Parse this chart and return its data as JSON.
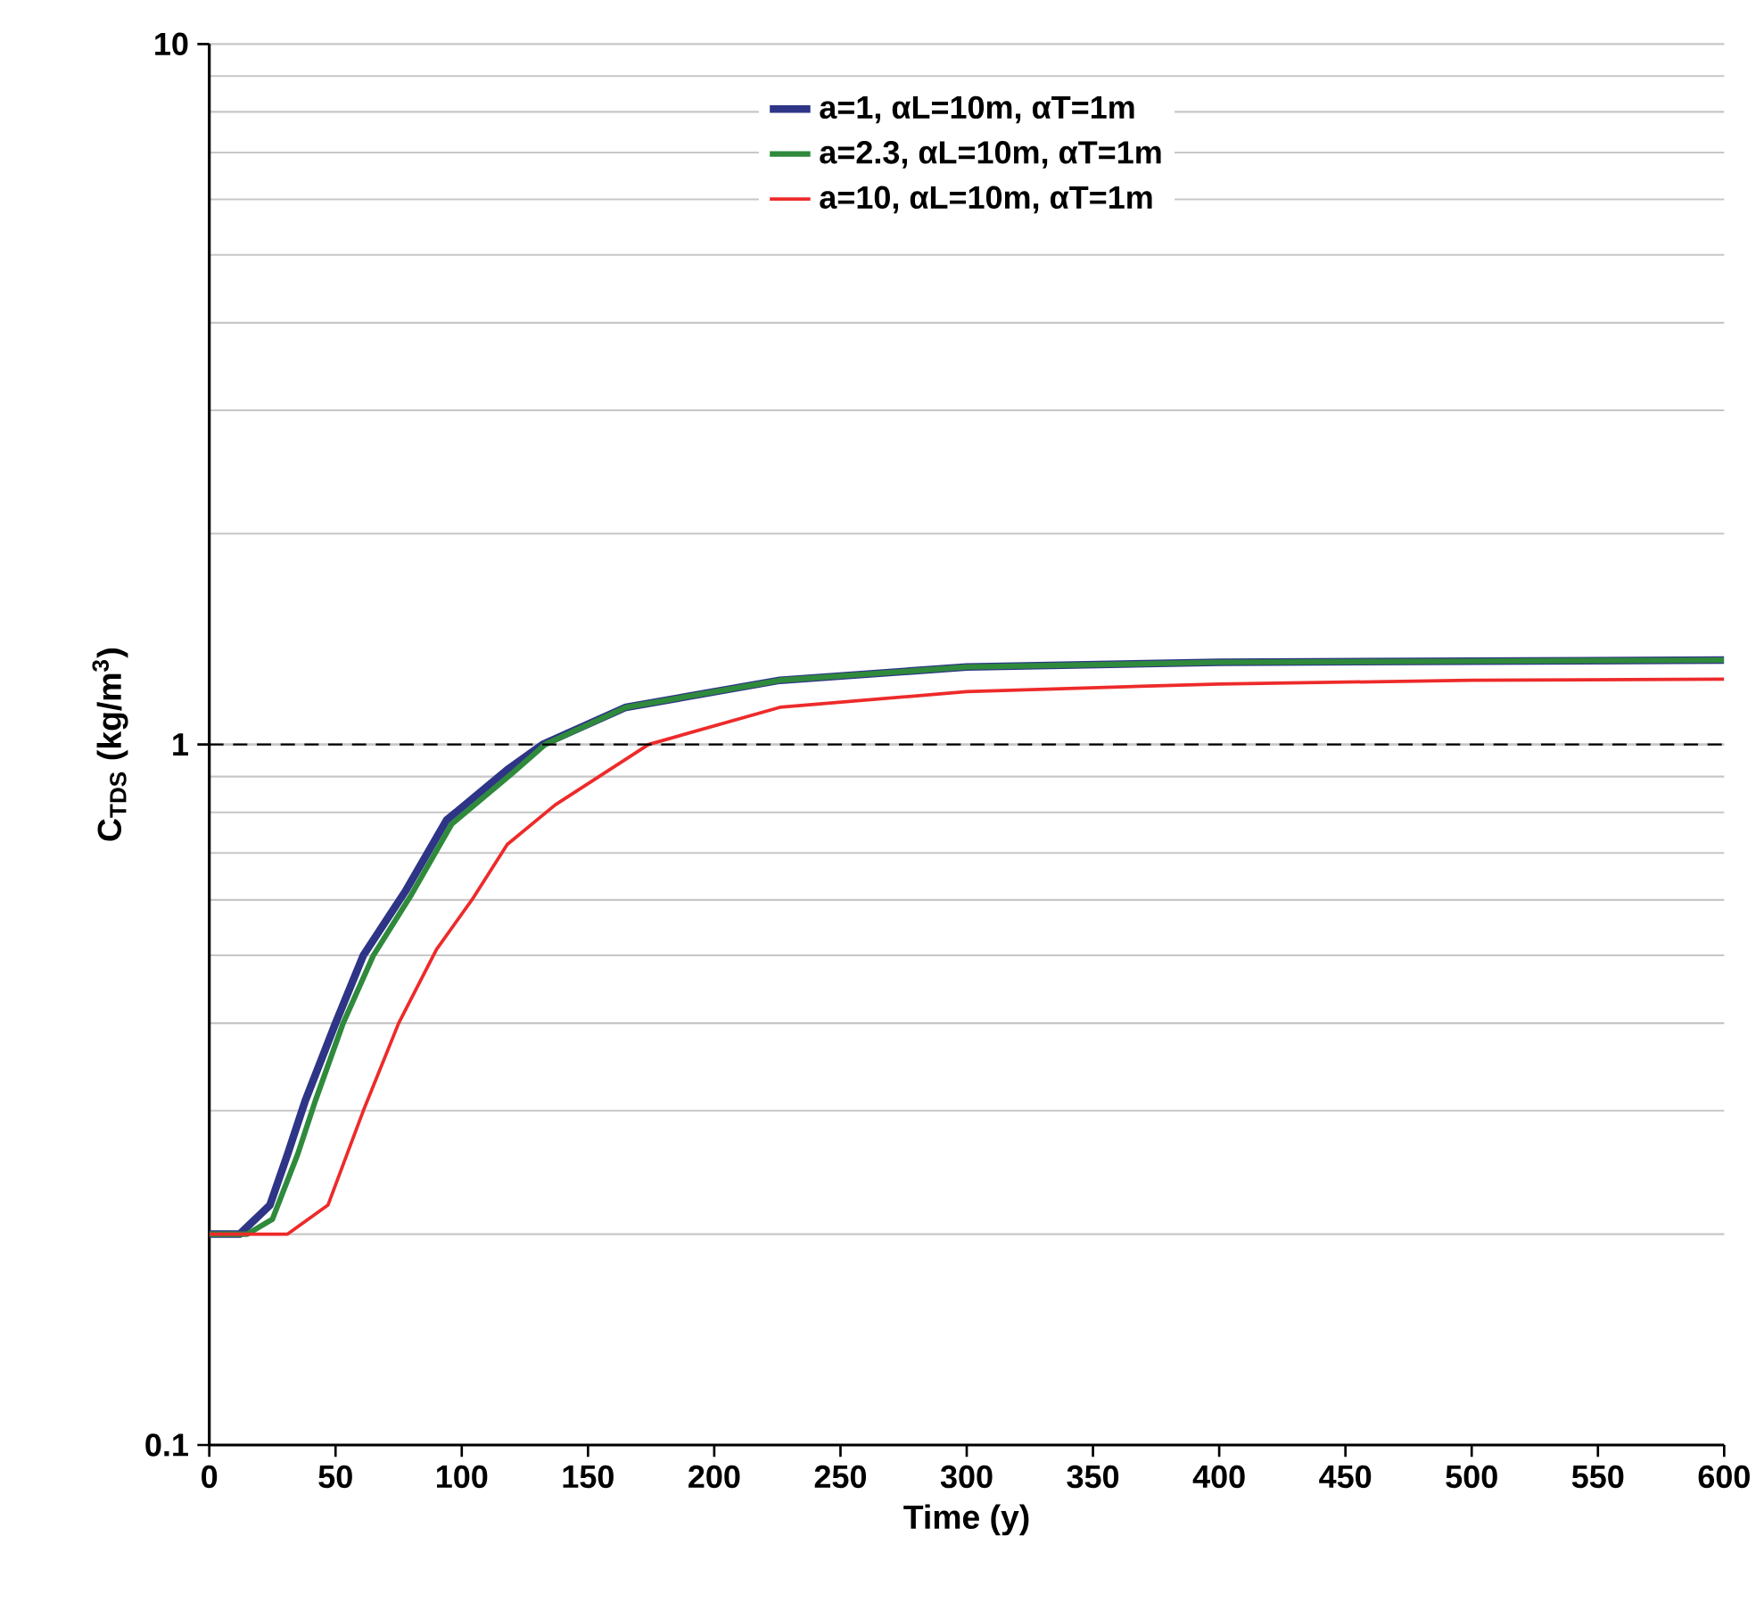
{
  "chart_data": {
    "type": "line",
    "xlabel": "Time (y)",
    "ylabel": "C$_{TDS}$ (kg/m$^{3}$)",
    "log": "y",
    "grid": "y",
    "legend": "top",
    "marker": "none",
    "line_style": "solid",
    "xlim": [
      0,
      600
    ],
    "xticks": [
      0,
      50,
      100,
      150,
      200,
      250,
      300,
      350,
      400,
      450,
      500,
      550,
      600
    ],
    "ylim": [
      0.1,
      10
    ],
    "yticks": [
      0.1,
      1,
      10
    ],
    "ref_lines": [
      {
        "axis": "y",
        "value": 1,
        "color": "#000000",
        "line_style": "dashed"
      }
    ],
    "series": [
      {
        "name": "a=1, αL=10m, αT=1m",
        "color": "#2e3587",
        "x": [
          0,
          12,
          24,
          31,
          38,
          50,
          61,
          78,
          94,
          118,
          132,
          165,
          226,
          300,
          400,
          500,
          600
        ],
        "values": [
          0.2,
          0.2,
          0.22,
          0.26,
          0.31,
          0.4,
          0.5,
          0.62,
          0.78,
          0.92,
          1.0,
          1.13,
          1.235,
          1.29,
          1.31,
          1.315,
          1.32
        ]
      },
      {
        "name": "a=2.3, αL=10m, αT=1m",
        "color": "#2f8a3c",
        "x": [
          0,
          15,
          25,
          35,
          42,
          53,
          65,
          80,
          96,
          120,
          133,
          165,
          226,
          300,
          400,
          500,
          600
        ],
        "values": [
          0.2,
          0.2,
          0.21,
          0.26,
          0.31,
          0.4,
          0.5,
          0.61,
          0.77,
          0.91,
          1.0,
          1.13,
          1.235,
          1.29,
          1.31,
          1.315,
          1.32
        ]
      },
      {
        "name": "a=10, αL=10m, αT=1m",
        "color": "#ee2a2a",
        "x": [
          0,
          31,
          47,
          61,
          75,
          90,
          104,
          118,
          137,
          174,
          226,
          300,
          400,
          500,
          600
        ],
        "values": [
          0.2,
          0.2,
          0.22,
          0.3,
          0.4,
          0.51,
          0.6,
          0.72,
          0.82,
          1.0,
          1.13,
          1.19,
          1.22,
          1.235,
          1.24
        ]
      }
    ]
  }
}
